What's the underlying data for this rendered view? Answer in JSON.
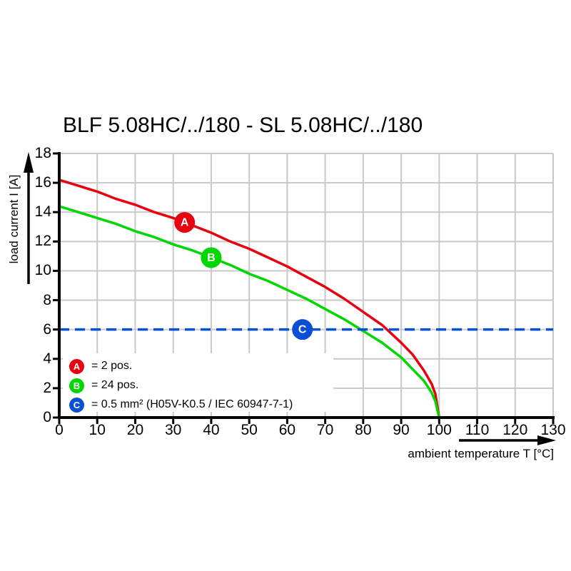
{
  "colors": {
    "background": "#ffffff",
    "grid": "#c9c9c9",
    "axis": "#000000",
    "red": "#e8000f",
    "green": "#00d600",
    "blue": "#0b4fd4"
  },
  "chart_data": {
    "type": "line",
    "title": "BLF 5.08HC/../180 - SL 5.08HC/../180",
    "xlabel": "ambient temperature T [°C]",
    "ylabel": "load current I [A]",
    "xlim": [
      0,
      130
    ],
    "ylim": [
      0,
      18
    ],
    "xticks": [
      0,
      10,
      20,
      30,
      40,
      50,
      60,
      70,
      80,
      90,
      100,
      110,
      120,
      130
    ],
    "yticks": [
      0,
      2,
      4,
      6,
      8,
      10,
      12,
      14,
      16,
      18
    ],
    "grid": true,
    "legend_position": "lower left",
    "x": [
      0,
      5,
      10,
      15,
      20,
      25,
      30,
      35,
      40,
      45,
      50,
      55,
      60,
      65,
      70,
      75,
      80,
      85,
      90,
      93,
      96,
      98,
      99,
      100
    ],
    "series": [
      {
        "name": "A",
        "label": "2 pos.",
        "color": "#e8000f",
        "style": "solid",
        "values": [
          16.2,
          15.8,
          15.4,
          14.9,
          14.5,
          14.0,
          13.6,
          13.1,
          12.6,
          12.0,
          11.5,
          10.9,
          10.3,
          9.6,
          8.9,
          8.1,
          7.2,
          6.3,
          5.1,
          4.3,
          3.2,
          2.3,
          1.6,
          0
        ],
        "marker": {
          "x": 33,
          "y": 13.3
        }
      },
      {
        "name": "B",
        "label": "24 pos.",
        "color": "#00d600",
        "style": "solid",
        "values": [
          14.4,
          14.0,
          13.6,
          13.2,
          12.7,
          12.3,
          11.8,
          11.4,
          10.9,
          10.4,
          9.8,
          9.3,
          8.7,
          8.1,
          7.4,
          6.7,
          5.9,
          5.1,
          4.1,
          3.3,
          2.5,
          1.7,
          1.1,
          0
        ],
        "marker": {
          "x": 40,
          "y": 10.9
        }
      },
      {
        "name": "C",
        "label": "0.5 mm² (H05V-K0.5 / IEC 60947-7-1)",
        "color": "#0b4fd4",
        "style": "dashed",
        "hline": 6,
        "marker": {
          "x": 64,
          "y": 6
        }
      }
    ],
    "legend": [
      {
        "symbol": "A",
        "color": "#e8000f",
        "text": "= 2 pos."
      },
      {
        "symbol": "B",
        "color": "#00d600",
        "text": "= 24 pos."
      },
      {
        "symbol": "C",
        "color": "#0b4fd4",
        "text": "= 0.5 mm² (H05V-K0.5 / IEC 60947-7-1)"
      }
    ]
  }
}
